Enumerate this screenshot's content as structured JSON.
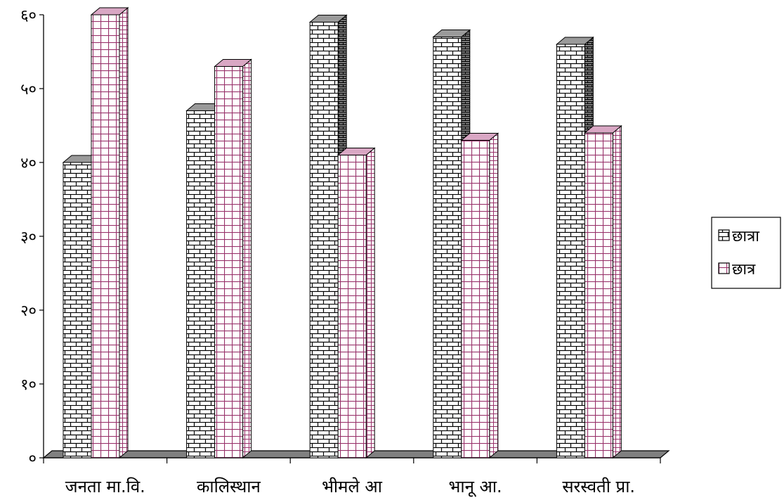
{
  "chart_data": {
    "type": "bar",
    "categories": [
      "जनता मा.वि.",
      "कालिस्थान",
      "भीमले आ",
      "भानू आ.",
      "सरस्वती प्रा."
    ],
    "series": [
      {
        "name": "छात्रा",
        "values": [
          40,
          47,
          59,
          57,
          56
        ],
        "color": "#000000",
        "pattern": "brick"
      },
      {
        "name": "छात्र",
        "values": [
          60,
          53,
          41,
          43,
          44
        ],
        "color": "#99336b",
        "pattern": "grid"
      }
    ],
    "yticks": [
      "०",
      "१०",
      "२०",
      "३०",
      "४०",
      "५०",
      "६०"
    ],
    "ylim": [
      0,
      60
    ],
    "legend_position": "right",
    "style": "3d-column"
  }
}
